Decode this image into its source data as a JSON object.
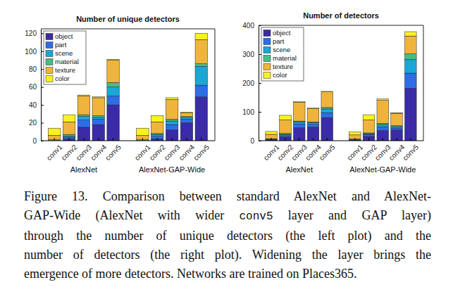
{
  "chart_data": [
    {
      "type": "bar",
      "stacked": true,
      "title": "Number of unique detectors",
      "groups": [
        {
          "name": "AlexNet",
          "categories": [
            "conv1",
            "conv2",
            "conv3",
            "conv4",
            "conv5"
          ]
        },
        {
          "name": "AlexNet-GAP-Wide",
          "categories": [
            "conv1",
            "conv2",
            "conv3",
            "conv4",
            "conv5"
          ]
        }
      ],
      "series": [
        {
          "name": "object",
          "color": "#3a2ca6",
          "values": [
            0,
            2,
            15,
            18,
            40,
            0,
            2,
            12,
            20,
            49
          ]
        },
        {
          "name": "part",
          "color": "#2c6ee8",
          "values": [
            0,
            2,
            8,
            6,
            10,
            0,
            3,
            6,
            4,
            13
          ]
        },
        {
          "name": "scene",
          "color": "#1ba6d8",
          "values": [
            0,
            1,
            4,
            2,
            10,
            0,
            2,
            4,
            2,
            21
          ]
        },
        {
          "name": "material",
          "color": "#45bd86",
          "values": [
            1,
            2,
            2,
            2,
            5,
            1,
            1,
            2,
            1,
            3
          ]
        },
        {
          "name": "texture",
          "color": "#f0b43c",
          "values": [
            5,
            14,
            21,
            20,
            25,
            5,
            13,
            22,
            4,
            27
          ]
        },
        {
          "name": "color",
          "color": "#f8f31e",
          "values": [
            8,
            8,
            1,
            1,
            1,
            8,
            7,
            2,
            1,
            7
          ]
        }
      ],
      "ylim": [
        0,
        125
      ],
      "yticks": [
        0,
        20,
        40,
        60,
        80,
        100,
        120
      ],
      "legend": "upper left",
      "grid": false
    },
    {
      "type": "bar",
      "stacked": true,
      "title": "Number of detectors",
      "groups": [
        {
          "name": "AlexNet",
          "categories": [
            "conv1",
            "conv2",
            "conv3",
            "conv4",
            "conv5"
          ]
        },
        {
          "name": "AlexNet-GAP-Wide",
          "categories": [
            "conv1",
            "conv2",
            "conv3",
            "conv4",
            "conv5"
          ]
        }
      ],
      "series": [
        {
          "name": "object",
          "color": "#3a2ca6",
          "values": [
            3,
            14,
            45,
            47,
            80,
            2,
            15,
            35,
            37,
            182
          ]
        },
        {
          "name": "part",
          "color": "#2c6ee8",
          "values": [
            2,
            6,
            13,
            10,
            17,
            2,
            7,
            13,
            7,
            52
          ]
        },
        {
          "name": "scene",
          "color": "#1ba6d8",
          "values": [
            0,
            2,
            7,
            5,
            13,
            0,
            2,
            8,
            5,
            47
          ]
        },
        {
          "name": "material",
          "color": "#45bd86",
          "values": [
            2,
            3,
            3,
            3,
            5,
            2,
            3,
            4,
            3,
            20
          ]
        },
        {
          "name": "texture",
          "color": "#f0b43c",
          "values": [
            15,
            47,
            65,
            46,
            54,
            14,
            45,
            80,
            43,
            62
          ]
        },
        {
          "name": "color",
          "color": "#f8f31e",
          "values": [
            10,
            16,
            2,
            2,
            2,
            10,
            18,
            5,
            2,
            15
          ]
        }
      ],
      "ylim": [
        0,
        400
      ],
      "yticks": [
        0,
        100,
        200,
        300,
        400
      ],
      "legend": "upper left",
      "grid": false
    }
  ],
  "caption": {
    "lines": [
      [
        {
          "text": "Figure 13. Comparison between standard AlexNet and AlexNet-"
        }
      ],
      [
        {
          "text": "GAP-Wide (AlexNet with wider "
        },
        {
          "text": "conv5",
          "code": true
        },
        {
          "text": " layer and GAP layer)"
        }
      ],
      [
        {
          "text": "through the number of unique detectors (the left plot) and the"
        }
      ],
      [
        {
          "text": "number of detectors (the right plot). Widening the layer brings the"
        }
      ],
      [
        {
          "text": "emergence of more detectors. Networks are trained on Places365."
        }
      ]
    ]
  }
}
